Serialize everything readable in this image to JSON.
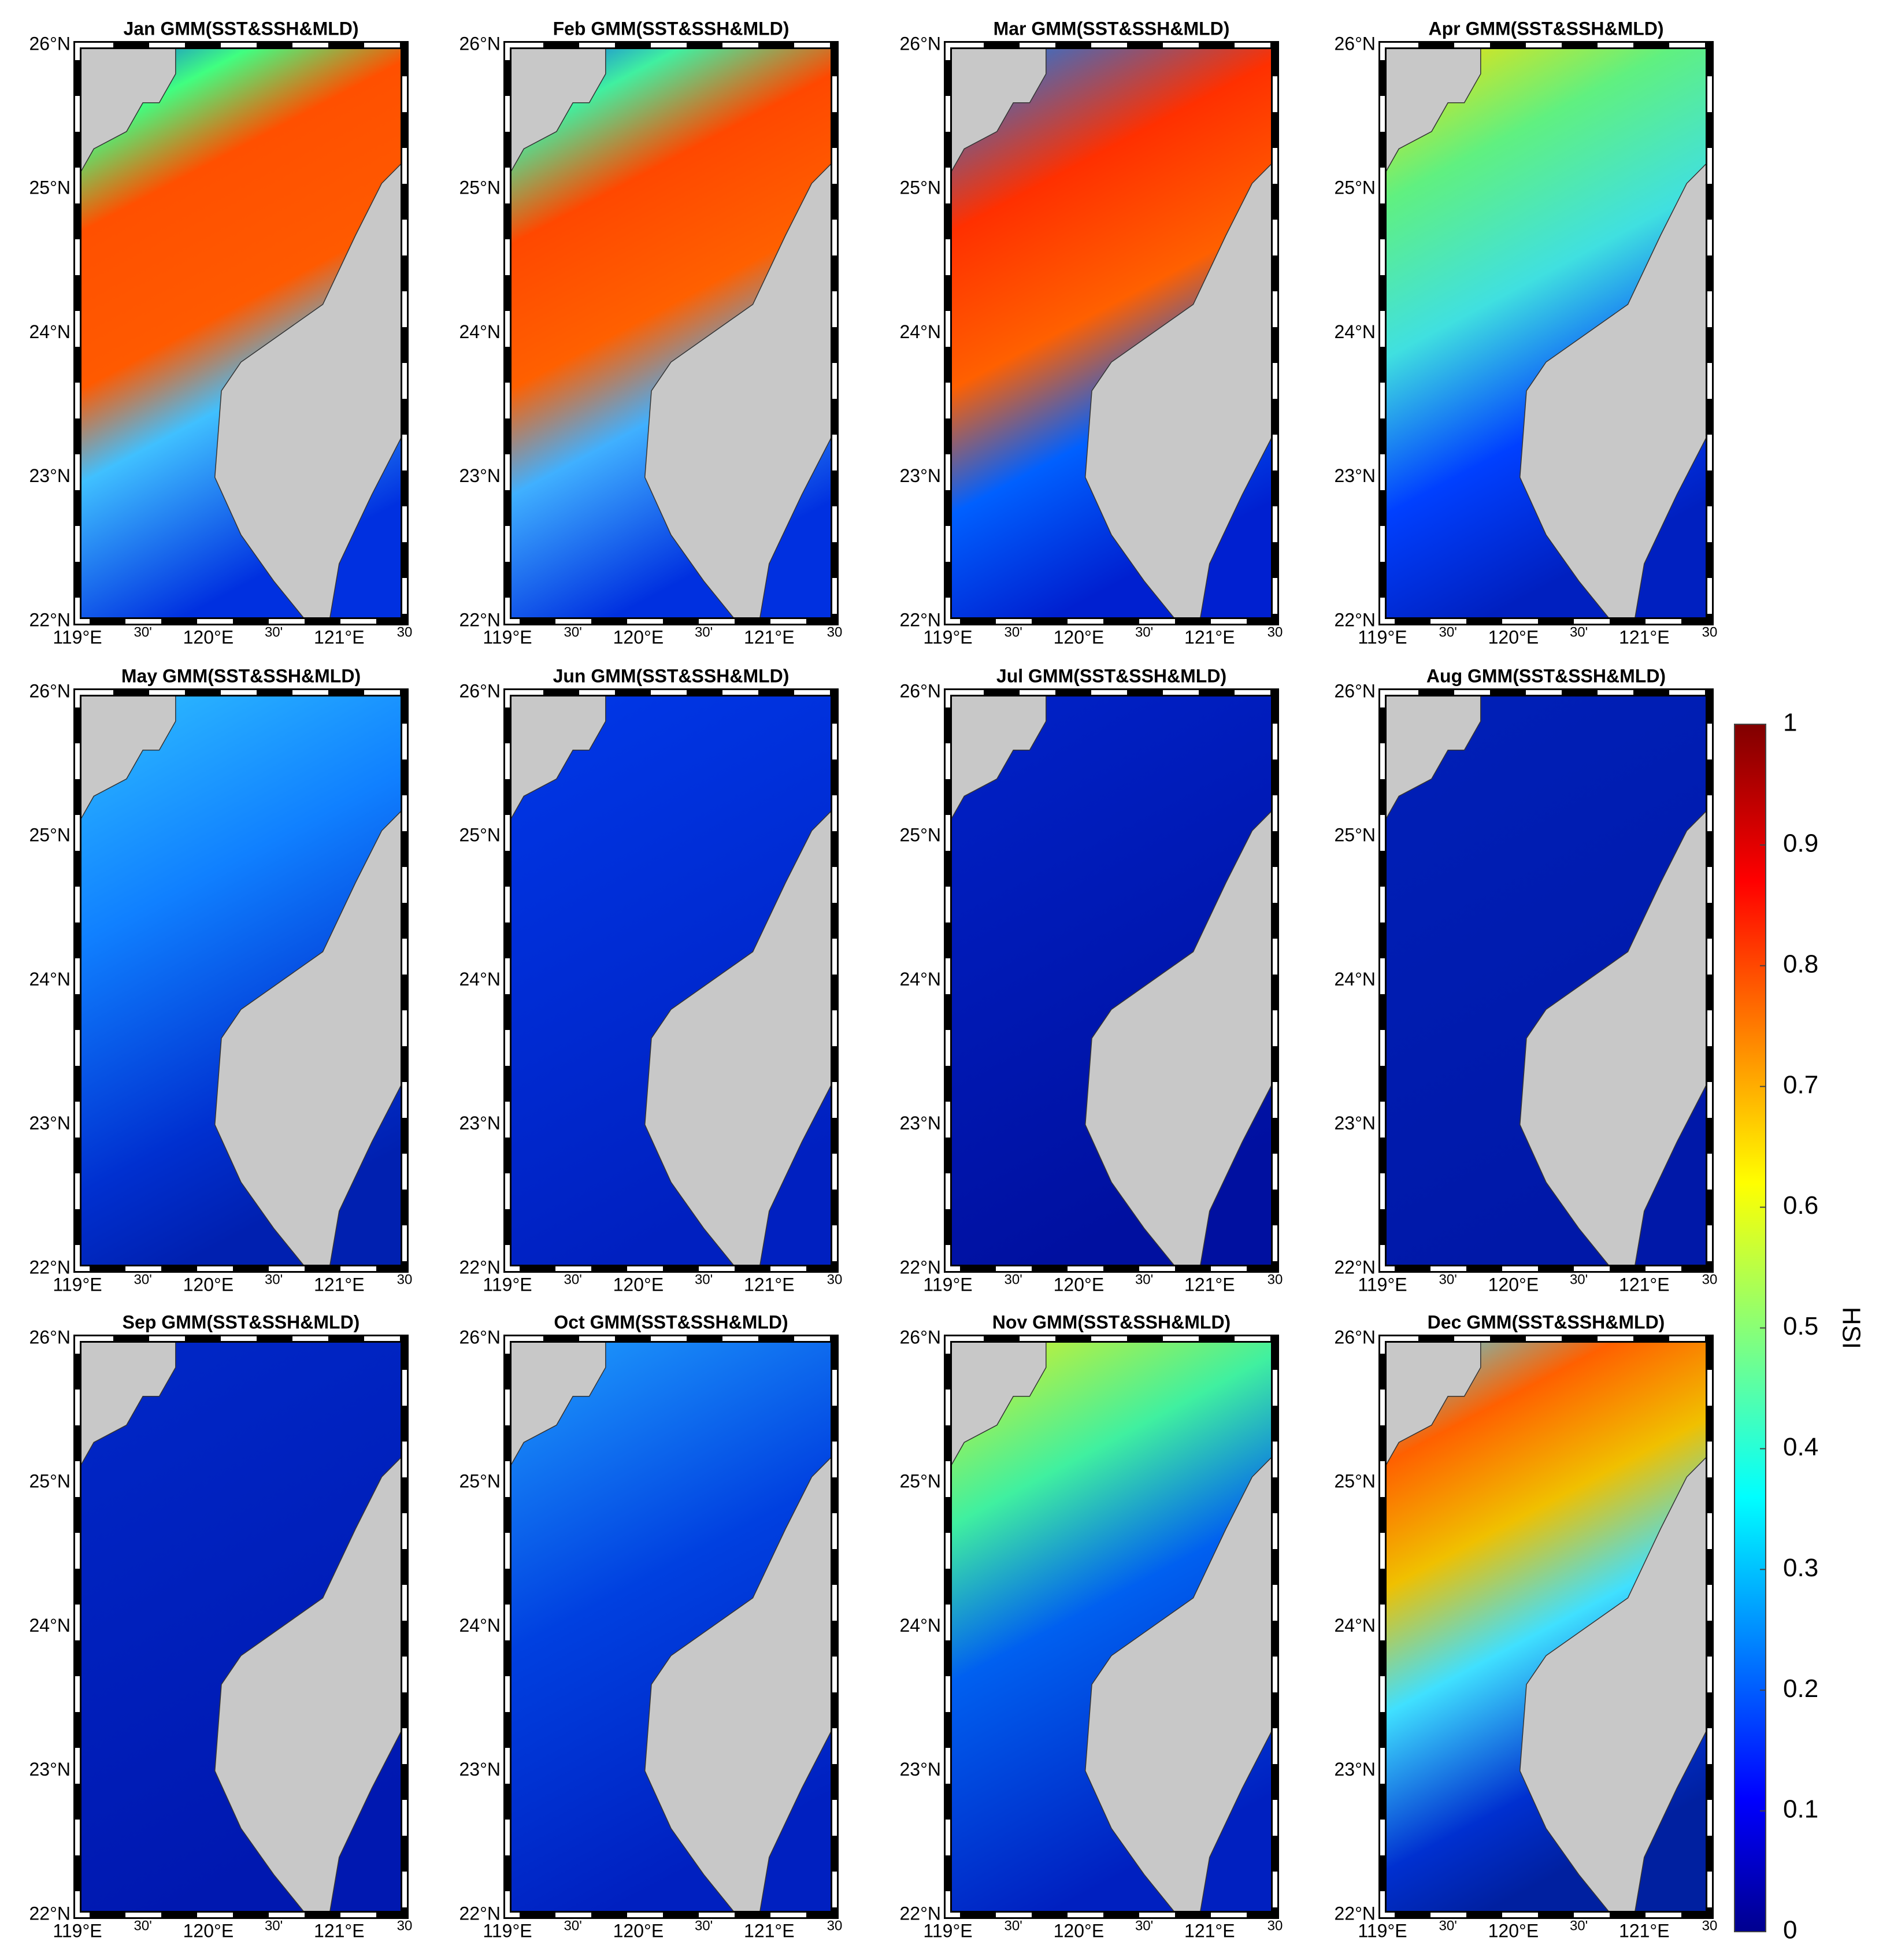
{
  "panels": [
    {
      "title": "Jan GMM(SST&SSH&MLD)"
    },
    {
      "title": "Feb GMM(SST&SSH&MLD)"
    },
    {
      "title": "Mar GMM(SST&SSH&MLD)"
    },
    {
      "title": "Apr GMM(SST&SSH&MLD)"
    },
    {
      "title": "May GMM(SST&SSH&MLD)"
    },
    {
      "title": "Jun GMM(SST&SSH&MLD)"
    },
    {
      "title": "Jul GMM(SST&SSH&MLD)"
    },
    {
      "title": "Aug GMM(SST&SSH&MLD)"
    },
    {
      "title": "Sep GMM(SST&SSH&MLD)"
    },
    {
      "title": "Oct GMM(SST&SSH&MLD)"
    },
    {
      "title": "Nov GMM(SST&SSH&MLD)"
    },
    {
      "title": "Dec GMM(SST&SSH&MLD)"
    }
  ],
  "lat_labels": [
    "26°N",
    "25°N",
    "24°N",
    "23°N",
    "22°N"
  ],
  "lon_labels": [
    "119°E",
    "30'",
    "120°E",
    "30'",
    "121°E",
    "30"
  ],
  "colorbar": {
    "label": "HSI",
    "lim": [
      0,
      1
    ],
    "ticks": [
      0,
      0.1,
      0.2,
      0.3,
      0.4,
      0.5,
      0.6,
      0.7,
      0.8,
      0.9,
      1
    ]
  }
}
